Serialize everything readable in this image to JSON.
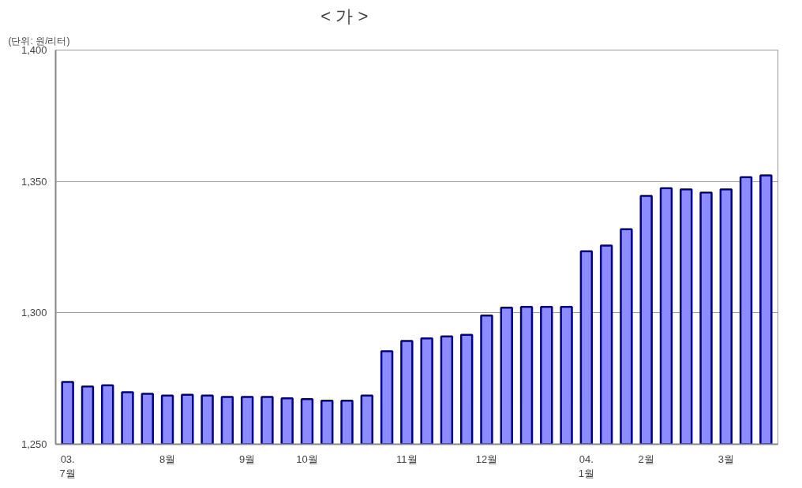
{
  "chart_data": {
    "type": "bar",
    "title": "<                가                >",
    "ylabel": "(단위: 원/리터)",
    "categories": [
      "03.\n7월",
      null,
      null,
      null,
      null,
      "8월",
      null,
      null,
      null,
      "9월",
      null,
      null,
      "10월",
      null,
      null,
      null,
      null,
      "11월",
      null,
      null,
      null,
      "12월",
      null,
      null,
      null,
      null,
      "04.\n1월",
      null,
      null,
      "2월",
      null,
      null,
      null,
      "3월",
      null,
      null
    ],
    "values": [
      1273.7,
      1272,
      1272.4,
      1269.8,
      1269.2,
      1268.5,
      1268.8,
      1268.5,
      1268,
      1268,
      1268,
      1267.5,
      1267.2,
      1266.6,
      1266.6,
      1268.5,
      1285.4,
      1289.3,
      1290.3,
      1291,
      1291.6,
      1299,
      1302,
      1302.3,
      1302.3,
      1302.3,
      1323.4,
      1325.6,
      1331.8,
      1344.5,
      1347.4,
      1347,
      1345.8,
      1347,
      1351.6,
      1352.3
    ],
    "color": "#8c8cff",
    "ylim": [
      1250,
      1400
    ],
    "yticks": [
      {
        "value": 1250,
        "label": "1,250"
      },
      {
        "value": 1300,
        "label": "1,300"
      },
      {
        "value": 1350,
        "label": "1,350"
      },
      {
        "value": 1400,
        "label": "1,400"
      }
    ],
    "grid": "y"
  }
}
